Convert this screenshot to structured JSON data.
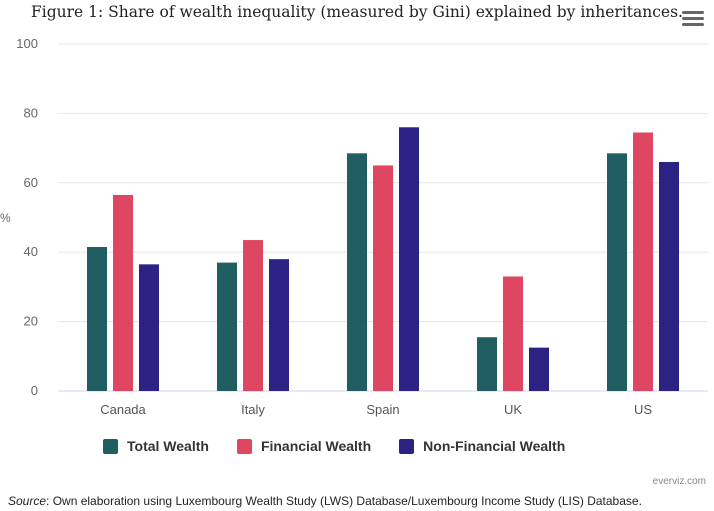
{
  "chart_data": {
    "type": "bar",
    "title": "Figure 1: Share of wealth inequality (measured by Gini) explained by inheritances.",
    "xlabel": "",
    "ylabel": "%",
    "categories": [
      "Canada",
      "Italy",
      "Spain",
      "UK",
      "US"
    ],
    "ylim": [
      0,
      100
    ],
    "yticks": [
      0,
      20,
      40,
      60,
      80,
      100
    ],
    "grid": true,
    "legend_position": "bottom",
    "series": [
      {
        "name": "Total Wealth",
        "color": "#215e61",
        "values": [
          41.5,
          37,
          68.5,
          15.5,
          68.5
        ]
      },
      {
        "name": "Financial Wealth",
        "color": "#de4661",
        "values": [
          56.5,
          43.5,
          65,
          33,
          74.5
        ]
      },
      {
        "name": "Non-Financial Wealth",
        "color": "#2b2284",
        "values": [
          36.5,
          38,
          76,
          12.5,
          66
        ]
      }
    ]
  },
  "credit": "everviz.com",
  "source": {
    "label": "Source",
    "text": ": Own elaboration using Luxembourg Wealth Study (LWS) Database/Luxembourg Income Study (LIS) Database."
  },
  "icons": {
    "menu": "hamburger-menu-icon"
  }
}
